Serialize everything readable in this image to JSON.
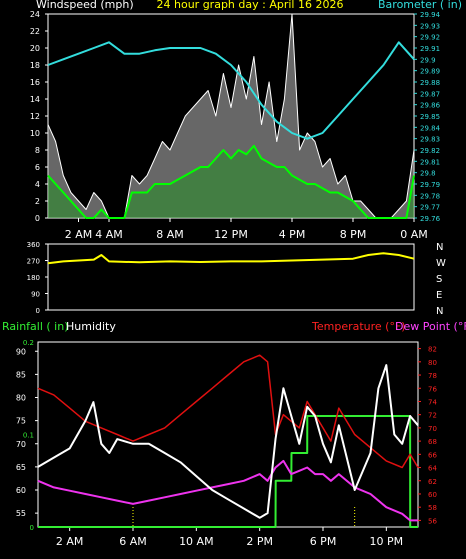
{
  "header": {
    "left": "Windspeed (mph)",
    "center": "24 hour graph day : April 16 2026",
    "right": "Barometer ( in)"
  },
  "colors": {
    "gust": "#ffffff",
    "wind": "#00ff00",
    "barometer": "#33dddd",
    "direction": "#ffff00",
    "humidity": "#ffffff",
    "temperature": "#e01010",
    "dewpoint": "#ee33ee",
    "rainfall": "#33ee33",
    "title": "#ffff00",
    "dewpoint_label": "#ff44ff",
    "temperature_label": "#ff2222",
    "axis": "#ffffff"
  },
  "chart_data": [
    {
      "type": "line",
      "x_ticks": [
        "2 AM",
        "4 AM",
        "8 AM",
        "12 PM",
        "4 PM",
        "8 PM",
        "0 AM"
      ],
      "ylabel_left": "Windspeed (mph)",
      "ylabel_right": "Barometer ( in)",
      "y_left_ticks": [
        "0",
        "2",
        "4",
        "6",
        "8",
        "10",
        "12",
        "14",
        "16",
        "18",
        "20",
        "22",
        "24"
      ],
      "y_right_ticks": [
        "29.76",
        "29.77",
        "29.78",
        "29.79",
        "29.8",
        "29.81",
        "29.82",
        "29.83",
        "29.84",
        "29.85",
        "29.86",
        "29.87",
        "29.88",
        "29.89",
        "29.9",
        "29.91",
        "29.92",
        "29.93",
        "29.94"
      ],
      "ylim_left": [
        0,
        24
      ],
      "ylim_right": [
        29.76,
        29.94
      ],
      "series": [
        {
          "values_hours": [
            0,
            0.5,
            1,
            1.5,
            2,
            2.5,
            3,
            3.5,
            4,
            4.5,
            5,
            5.5,
            6,
            6.5,
            7,
            7.5,
            8,
            8.5,
            9,
            9.5,
            10,
            10.5,
            11,
            11.5,
            12,
            12.5,
            13,
            13.5,
            14,
            14.5,
            15,
            15.5,
            16,
            16.5,
            17,
            17.5,
            18,
            18.5,
            19,
            19.5,
            20,
            20.5,
            21,
            21.5,
            22,
            22.5,
            23,
            23.5,
            24
          ],
          "values": [
            11,
            9,
            5,
            3,
            2,
            1,
            3,
            2,
            0,
            0,
            0,
            5,
            4,
            5,
            7,
            9,
            8,
            10,
            12,
            13,
            14,
            15,
            12,
            17,
            13,
            18,
            14,
            19,
            11,
            16,
            9,
            14,
            24,
            8,
            10,
            9,
            6,
            7,
            4,
            5,
            2,
            2,
            1,
            0,
            0,
            0,
            1,
            2,
            8
          ]
        },
        {
          "values_hours": [
            0,
            0.5,
            1,
            1.5,
            2,
            2.5,
            3,
            3.5,
            4,
            4.5,
            5,
            5.5,
            6,
            6.5,
            7,
            7.5,
            8,
            8.5,
            9,
            9.5,
            10,
            10.5,
            11,
            11.5,
            12,
            12.5,
            13,
            13.5,
            14,
            14.5,
            15,
            15.5,
            16,
            16.5,
            17,
            17.5,
            18,
            18.5,
            19,
            19.5,
            20,
            20.5,
            21,
            21.5,
            22,
            22.5,
            23,
            23.5,
            24
          ],
          "values": [
            5,
            4,
            3,
            2,
            1,
            0,
            0,
            1,
            0,
            0,
            0,
            3,
            3,
            3,
            4,
            4,
            4,
            4.5,
            5,
            5.5,
            6,
            6,
            7,
            8,
            7,
            8,
            7.5,
            8.5,
            7,
            6.5,
            6,
            6,
            5,
            4.5,
            4,
            4,
            3.5,
            3,
            3,
            2.5,
            2,
            1,
            0,
            0,
            0,
            0,
            0,
            0,
            5
          ]
        },
        {
          "values_hours": [
            0,
            1,
            2,
            3,
            4,
            5,
            6,
            7,
            8,
            9,
            10,
            11,
            12,
            13,
            14,
            15,
            16,
            17,
            18,
            19,
            20,
            21,
            22,
            23,
            24
          ],
          "values": [
            29.895,
            29.9,
            29.905,
            29.91,
            29.915,
            29.905,
            29.905,
            29.908,
            29.91,
            29.91,
            29.91,
            29.905,
            29.895,
            29.88,
            29.86,
            29.845,
            29.835,
            29.83,
            29.835,
            29.85,
            29.865,
            29.88,
            29.895,
            29.915,
            29.9
          ]
        }
      ]
    },
    {
      "type": "line",
      "y_ticks": [
        "360",
        "270",
        "180",
        "90",
        "0"
      ],
      "compass": [
        "N",
        "W",
        "S",
        "E",
        "N"
      ],
      "ylim": [
        0,
        360
      ],
      "series": [
        {
          "values_hours": [
            0,
            1,
            2,
            3,
            3.5,
            4,
            6,
            8,
            10,
            12,
            14,
            16,
            18,
            20,
            21,
            22,
            23,
            24
          ],
          "values": [
            255,
            265,
            270,
            275,
            300,
            265,
            260,
            265,
            262,
            265,
            265,
            270,
            275,
            280,
            300,
            310,
            300,
            280
          ]
        }
      ]
    },
    {
      "type": "line",
      "legend_left": [
        "Rainfall ( in)",
        "Humidity"
      ],
      "legend_right": [
        "Temperature (°F)",
        "Dew Point (°F)"
      ],
      "x_ticks": [
        "2 AM",
        "6 AM",
        "10 AM",
        "2 PM",
        "6 PM",
        "10 PM"
      ],
      "y_left_ticks": [
        "55",
        "60",
        "65",
        "70",
        "75",
        "80",
        "85",
        "90"
      ],
      "y_rain_ticks": [
        "0",
        "0.1",
        "0.2"
      ],
      "y_right_ticks": [
        "56",
        "58",
        "60",
        "62",
        "64",
        "66",
        "68",
        "70",
        "72",
        "74",
        "76",
        "78",
        "80",
        "82"
      ],
      "ylim_left": [
        52,
        92
      ],
      "ylim_right": [
        55,
        83
      ],
      "ylim_rain": [
        0,
        0.2
      ],
      "series": [
        {
          "name": "Humidity",
          "values_hours": [
            0,
            1,
            2,
            3,
            3.5,
            4,
            4.5,
            5,
            6,
            7,
            8,
            9,
            10,
            11,
            12,
            13,
            14,
            14.5,
            15,
            15.5,
            16,
            16.5,
            17,
            17.5,
            18,
            18.5,
            19,
            20,
            21,
            21.5,
            22,
            22.5,
            23,
            23.5,
            24
          ],
          "values": [
            65,
            67,
            69,
            75,
            79,
            70,
            68,
            71,
            70,
            70,
            68,
            66,
            63,
            60,
            58,
            56,
            54,
            55,
            71,
            82,
            76,
            70,
            78,
            76,
            70,
            66,
            74,
            60,
            68,
            82,
            87,
            72,
            70,
            76,
            74
          ]
        },
        {
          "name": "Temperature",
          "values_hours": [
            0,
            1,
            2,
            3,
            4,
            5,
            6,
            7,
            8,
            9,
            10,
            11,
            12,
            13,
            14,
            14.5,
            15,
            15.5,
            16,
            16.5,
            17,
            17.5,
            18,
            18.5,
            19,
            20,
            21,
            22,
            23,
            23.5,
            24
          ],
          "values": [
            76,
            75,
            73,
            71,
            70,
            69,
            68,
            69,
            70,
            72,
            74,
            76,
            78,
            80,
            81,
            80,
            69,
            72,
            71,
            70,
            74,
            72,
            70,
            68,
            73,
            69,
            67,
            65,
            64,
            66,
            64
          ]
        },
        {
          "name": "Dew Point",
          "values_hours": [
            0,
            1,
            2,
            3,
            4,
            5,
            6,
            7,
            8,
            9,
            10,
            11,
            12,
            13,
            14,
            14.5,
            15,
            15.5,
            16,
            16.5,
            17,
            17.5,
            18,
            18.5,
            19,
            20,
            21,
            22,
            23,
            23.5,
            24
          ],
          "values": [
            62,
            61,
            60.5,
            60,
            59.5,
            59,
            58.5,
            59,
            59.5,
            60,
            60.5,
            61,
            61.5,
            62,
            63,
            62,
            64,
            65,
            63,
            63.5,
            64,
            63,
            63,
            62,
            63,
            61,
            60,
            58,
            57,
            56,
            56
          ]
        },
        {
          "name": "Rainfall",
          "values_hours": [
            0,
            15,
            15.01,
            16,
            16.01,
            17,
            17.01,
            20,
            20.01,
            23.5,
            23.51,
            24
          ],
          "values": [
            0,
            0,
            0.05,
            0.05,
            0.08,
            0.08,
            0.12,
            0.12,
            0.12,
            0.12,
            0,
            0
          ]
        }
      ]
    }
  ]
}
